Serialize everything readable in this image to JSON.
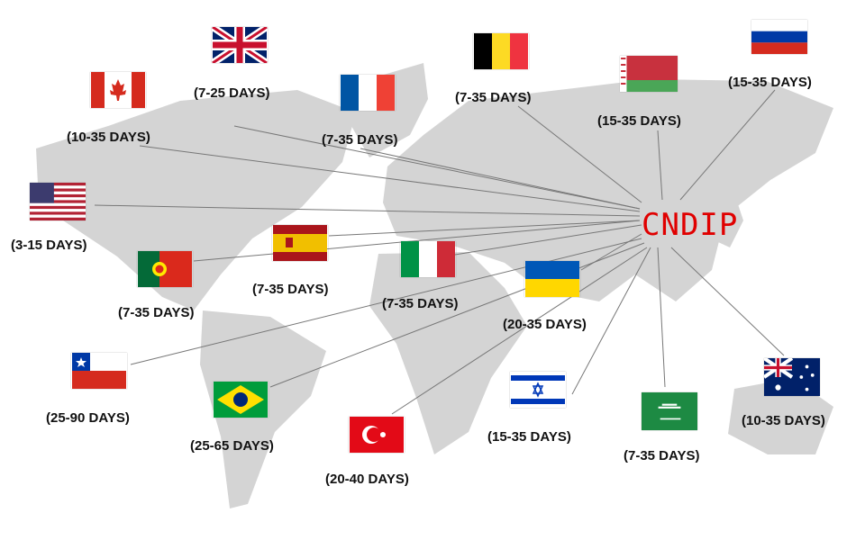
{
  "hub": {
    "label": "CNDIP",
    "color": "#e00000"
  },
  "map_color": "#d4d4d4",
  "destinations": [
    {
      "country": "United Kingdom",
      "flag": "uk-flag-icon",
      "days": "(7-25 DAYS)"
    },
    {
      "country": "Canada",
      "flag": "canada-flag-icon",
      "days": "(10-35 DAYS)"
    },
    {
      "country": "France",
      "flag": "france-flag-icon",
      "days": "(7-35 DAYS)"
    },
    {
      "country": "Belgium",
      "flag": "belgium-flag-icon",
      "days": "(7-35 DAYS)"
    },
    {
      "country": "Belarus",
      "flag": "belarus-flag-icon",
      "days": "(15-35 DAYS)"
    },
    {
      "country": "Russia",
      "flag": "russia-flag-icon",
      "days": "(15-35 DAYS)"
    },
    {
      "country": "United States",
      "flag": "usa-flag-icon",
      "days": "(3-15 DAYS)"
    },
    {
      "country": "Portugal",
      "flag": "portugal-flag-icon",
      "days": "(7-35 DAYS)"
    },
    {
      "country": "Spain",
      "flag": "spain-flag-icon",
      "days": "(7-35 DAYS)"
    },
    {
      "country": "Italy",
      "flag": "italy-flag-icon",
      "days": "(7-35 DAYS)"
    },
    {
      "country": "Ukraine",
      "flag": "ukraine-flag-icon",
      "days": "(20-35 DAYS)"
    },
    {
      "country": "Chile",
      "flag": "chile-flag-icon",
      "days": "(25-90 DAYS)"
    },
    {
      "country": "Brazil",
      "flag": "brazil-flag-icon",
      "days": "(25-65 DAYS)"
    },
    {
      "country": "Turkey",
      "flag": "turkey-flag-icon",
      "days": "(20-40 DAYS)"
    },
    {
      "country": "Israel",
      "flag": "israel-flag-icon",
      "days": "(15-35 DAYS)"
    },
    {
      "country": "Saudi Arabia",
      "flag": "saudi-flag-icon",
      "days": "(7-35 DAYS)"
    },
    {
      "country": "Australia",
      "flag": "australia-flag-icon",
      "days": "(10-35 DAYS)"
    }
  ]
}
